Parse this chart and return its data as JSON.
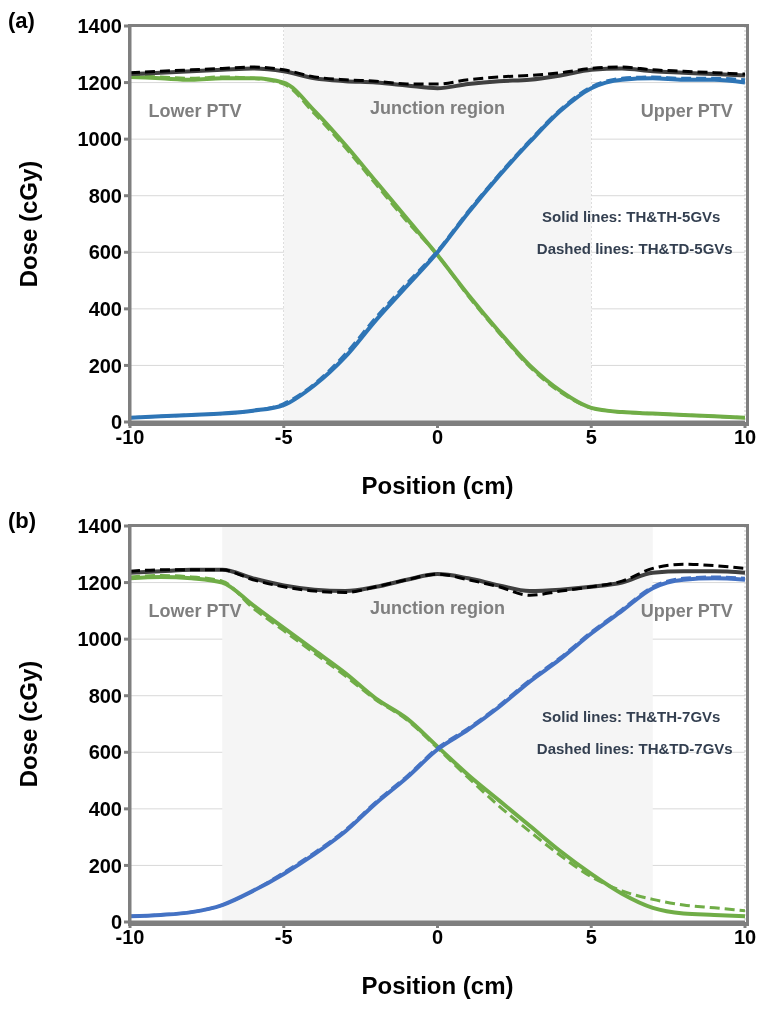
{
  "chart_data": [
    {
      "type": "line",
      "title": "(a)",
      "xlabel": "Position (cm)",
      "ylabel": "Dose (cGy)",
      "x": [
        -10,
        -9,
        -8,
        -7,
        -6,
        -5,
        -4,
        -3,
        -2,
        -1,
        0,
        1,
        2,
        3,
        4,
        5,
        6,
        7,
        8,
        9,
        10
      ],
      "xlim": [
        -10,
        10
      ],
      "xticks": [
        -10,
        -5,
        0,
        5,
        10
      ],
      "ylim": [
        0,
        1400
      ],
      "yticks": [
        0,
        200,
        400,
        600,
        800,
        1000,
        1200,
        1400
      ],
      "grid": true,
      "bands": [
        {
          "axis": "x",
          "from": -5,
          "to": 5,
          "label": "Junction region",
          "color": "#f5f5f5"
        }
      ],
      "annotations": [
        "Lower PTV",
        "Upper PTV",
        "Solid lines: TH&TH-5GVs",
        "Dashed lines: TH&TD-5GVs"
      ],
      "series": [
        {
          "color": "#70ad47",
          "line_style": "solid",
          "values": [
            1220,
            1215,
            1210,
            1215,
            1215,
            1200,
            1100,
            980,
            850,
            720,
            590,
            450,
            320,
            200,
            110,
            50,
            35,
            30,
            25,
            20,
            15
          ]
        },
        {
          "color": "#70ad47",
          "line_style": "dashed",
          "values": [
            1225,
            1220,
            1215,
            1220,
            1215,
            1195,
            1090,
            970,
            840,
            710,
            590,
            445,
            315,
            195,
            105,
            50,
            35,
            30,
            25,
            20,
            15
          ]
        },
        {
          "color": "#2e75b6",
          "line_style": "solid",
          "values": [
            15,
            20,
            25,
            30,
            40,
            60,
            130,
            230,
            360,
            480,
            600,
            740,
            870,
            990,
            1100,
            1180,
            1210,
            1215,
            1210,
            1210,
            1200
          ]
        },
        {
          "color": "#2e75b6",
          "line_style": "dashed",
          "values": [
            15,
            20,
            25,
            30,
            40,
            65,
            135,
            240,
            370,
            490,
            605,
            745,
            875,
            995,
            1105,
            1185,
            1215,
            1220,
            1215,
            1215,
            1210
          ]
        },
        {
          "color": "#404040",
          "line_style": "solid",
          "values": [
            1230,
            1235,
            1240,
            1245,
            1250,
            1240,
            1215,
            1205,
            1200,
            1190,
            1180,
            1195,
            1205,
            1210,
            1225,
            1245,
            1250,
            1240,
            1235,
            1230,
            1225
          ]
        },
        {
          "color": "#000000",
          "line_style": "dashed",
          "values": [
            1235,
            1240,
            1245,
            1250,
            1255,
            1245,
            1220,
            1210,
            1205,
            1195,
            1195,
            1210,
            1220,
            1225,
            1235,
            1250,
            1255,
            1245,
            1240,
            1235,
            1230
          ]
        }
      ]
    },
    {
      "type": "line",
      "title": "(b)",
      "xlabel": "Position (cm)",
      "ylabel": "Dose (cGy)",
      "x": [
        -10,
        -9,
        -8,
        -7,
        -6,
        -5,
        -4,
        -3,
        -2,
        -1,
        0,
        1,
        2,
        3,
        4,
        5,
        6,
        7,
        8,
        9,
        10
      ],
      "xlim": [
        -10,
        10
      ],
      "xticks": [
        -10,
        -5,
        0,
        5,
        10
      ],
      "ylim": [
        0,
        1400
      ],
      "yticks": [
        0,
        200,
        400,
        600,
        800,
        1000,
        1200,
        1400
      ],
      "grid": true,
      "bands": [
        {
          "axis": "x",
          "from": -7,
          "to": 7,
          "label": "Junction region",
          "color": "#f5f5f5"
        }
      ],
      "annotations": [
        "Lower PTV",
        "Upper PTV",
        "Solid lines: TH&TH-7GVs",
        "Dashed lines: TH&TD-7GVs"
      ],
      "series": [
        {
          "color": "#70ad47",
          "line_style": "solid",
          "values": [
            1215,
            1220,
            1215,
            1200,
            1120,
            1040,
            960,
            880,
            790,
            720,
            620,
            520,
            430,
            340,
            250,
            170,
            100,
            50,
            30,
            25,
            20
          ]
        },
        {
          "color": "#70ad47",
          "line_style": "dashed",
          "values": [
            1220,
            1225,
            1220,
            1205,
            1110,
            1030,
            950,
            870,
            785,
            715,
            615,
            510,
            410,
            320,
            235,
            160,
            110,
            80,
            60,
            50,
            40
          ]
        },
        {
          "color": "#4472c4",
          "line_style": "solid",
          "values": [
            20,
            25,
            35,
            60,
            110,
            170,
            240,
            320,
            420,
            510,
            610,
            680,
            760,
            850,
            930,
            1020,
            1100,
            1180,
            1210,
            1215,
            1210
          ]
        },
        {
          "color": "#4472c4",
          "line_style": "dashed",
          "values": [
            20,
            25,
            35,
            60,
            110,
            175,
            245,
            325,
            425,
            515,
            615,
            685,
            765,
            855,
            935,
            1025,
            1105,
            1185,
            1215,
            1220,
            1215
          ]
        },
        {
          "color": "#404040",
          "line_style": "solid",
          "values": [
            1235,
            1240,
            1245,
            1245,
            1215,
            1190,
            1175,
            1170,
            1185,
            1210,
            1230,
            1215,
            1190,
            1170,
            1175,
            1185,
            1200,
            1235,
            1240,
            1240,
            1235
          ]
        },
        {
          "color": "#000000",
          "line_style": "dashed",
          "values": [
            1240,
            1245,
            1245,
            1245,
            1210,
            1185,
            1170,
            1165,
            1185,
            1210,
            1230,
            1210,
            1185,
            1155,
            1170,
            1185,
            1205,
            1250,
            1265,
            1260,
            1250
          ]
        }
      ]
    }
  ]
}
